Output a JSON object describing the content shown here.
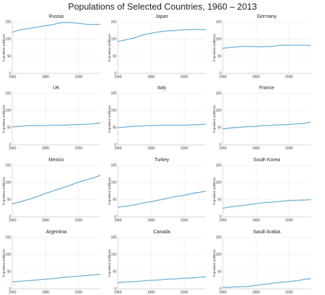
{
  "title": "Populations of Selected Countries, 1960 – 2013",
  "chart_data": {
    "type": "line",
    "layout": "small-multiples-4x3",
    "shared_axes": {
      "xlim": [
        1960,
        2013
      ],
      "ylim": [
        0,
        150
      ],
      "x_ticks": [
        1960,
        1980,
        2000
      ],
      "y_ticks": [
        0,
        50,
        100,
        150
      ],
      "ylabel": "Population (millions)",
      "grid": true
    },
    "line_color": "#6baed6",
    "panels": [
      {
        "title": "Russia",
        "x": [
          1960,
          1965,
          1970,
          1975,
          1980,
          1985,
          1990,
          1995,
          2000,
          2005,
          2010,
          2013
        ],
        "y": [
          120,
          127,
          131,
          135,
          139,
          143,
          148,
          148,
          146,
          143,
          143,
          143
        ]
      },
      {
        "title": "Japan",
        "x": [
          1960,
          1965,
          1970,
          1975,
          1980,
          1985,
          1990,
          1995,
          2000,
          2005,
          2010,
          2013
        ],
        "y": [
          93,
          98,
          104,
          112,
          117,
          121,
          124,
          125,
          127,
          128,
          128,
          127
        ]
      },
      {
        "title": "Germany",
        "x": [
          1960,
          1965,
          1970,
          1975,
          1980,
          1985,
          1990,
          1995,
          2000,
          2005,
          2010,
          2013
        ],
        "y": [
          73,
          76,
          78,
          79,
          78,
          78,
          79,
          82,
          82,
          82,
          82,
          81
        ]
      },
      {
        "title": "UK",
        "x": [
          1960,
          1965,
          1970,
          1975,
          1980,
          1985,
          1990,
          1995,
          2000,
          2005,
          2010,
          2013
        ],
        "y": [
          52,
          54,
          56,
          56,
          56,
          57,
          57,
          58,
          59,
          60,
          62,
          64
        ]
      },
      {
        "title": "Italy",
        "x": [
          1960,
          1965,
          1970,
          1975,
          1980,
          1985,
          1990,
          1995,
          2000,
          2005,
          2010,
          2013
        ],
        "y": [
          50,
          52,
          54,
          55,
          56,
          57,
          57,
          57,
          57,
          58,
          59,
          60
        ]
      },
      {
        "title": "France",
        "x": [
          1960,
          1965,
          1970,
          1975,
          1980,
          1985,
          1990,
          1995,
          2000,
          2005,
          2010,
          2013
        ],
        "y": [
          46,
          49,
          51,
          53,
          54,
          56,
          57,
          58,
          59,
          61,
          63,
          66
        ]
      },
      {
        "title": "Mexico",
        "x": [
          1960,
          1965,
          1970,
          1975,
          1980,
          1985,
          1990,
          1995,
          2000,
          2005,
          2010,
          2013
        ],
        "y": [
          38,
          44,
          51,
          59,
          68,
          76,
          84,
          92,
          101,
          108,
          115,
          121
        ]
      },
      {
        "title": "Turkey",
        "x": [
          1960,
          1965,
          1970,
          1975,
          1980,
          1985,
          1990,
          1995,
          2000,
          2005,
          2010,
          2013
        ],
        "y": [
          28,
          31,
          35,
          40,
          44,
          49,
          54,
          59,
          63,
          68,
          72,
          75
        ]
      },
      {
        "title": "South Korea",
        "x": [
          1960,
          1965,
          1970,
          1975,
          1980,
          1985,
          1990,
          1995,
          2000,
          2005,
          2010,
          2013
        ],
        "y": [
          25,
          29,
          32,
          35,
          38,
          41,
          43,
          45,
          47,
          48,
          49,
          50
        ]
      },
      {
        "title": "Argentina",
        "x": [
          1960,
          1965,
          1970,
          1975,
          1980,
          1985,
          1990,
          1995,
          2000,
          2005,
          2010,
          2013
        ],
        "y": [
          20,
          22,
          24,
          26,
          28,
          30,
          33,
          35,
          37,
          39,
          41,
          42
        ]
      },
      {
        "title": "Canada",
        "x": [
          1960,
          1965,
          1970,
          1975,
          1980,
          1985,
          1990,
          1995,
          2000,
          2005,
          2010,
          2013
        ],
        "y": [
          18,
          20,
          21,
          23,
          25,
          26,
          28,
          29,
          31,
          32,
          34,
          35
        ]
      },
      {
        "title": "Saudi Arabia",
        "x": [
          1960,
          1965,
          1970,
          1975,
          1980,
          1985,
          1990,
          1995,
          2000,
          2005,
          2010,
          2013
        ],
        "y": [
          4,
          5,
          6,
          7,
          10,
          13,
          16,
          19,
          21,
          24,
          28,
          29
        ]
      }
    ]
  }
}
